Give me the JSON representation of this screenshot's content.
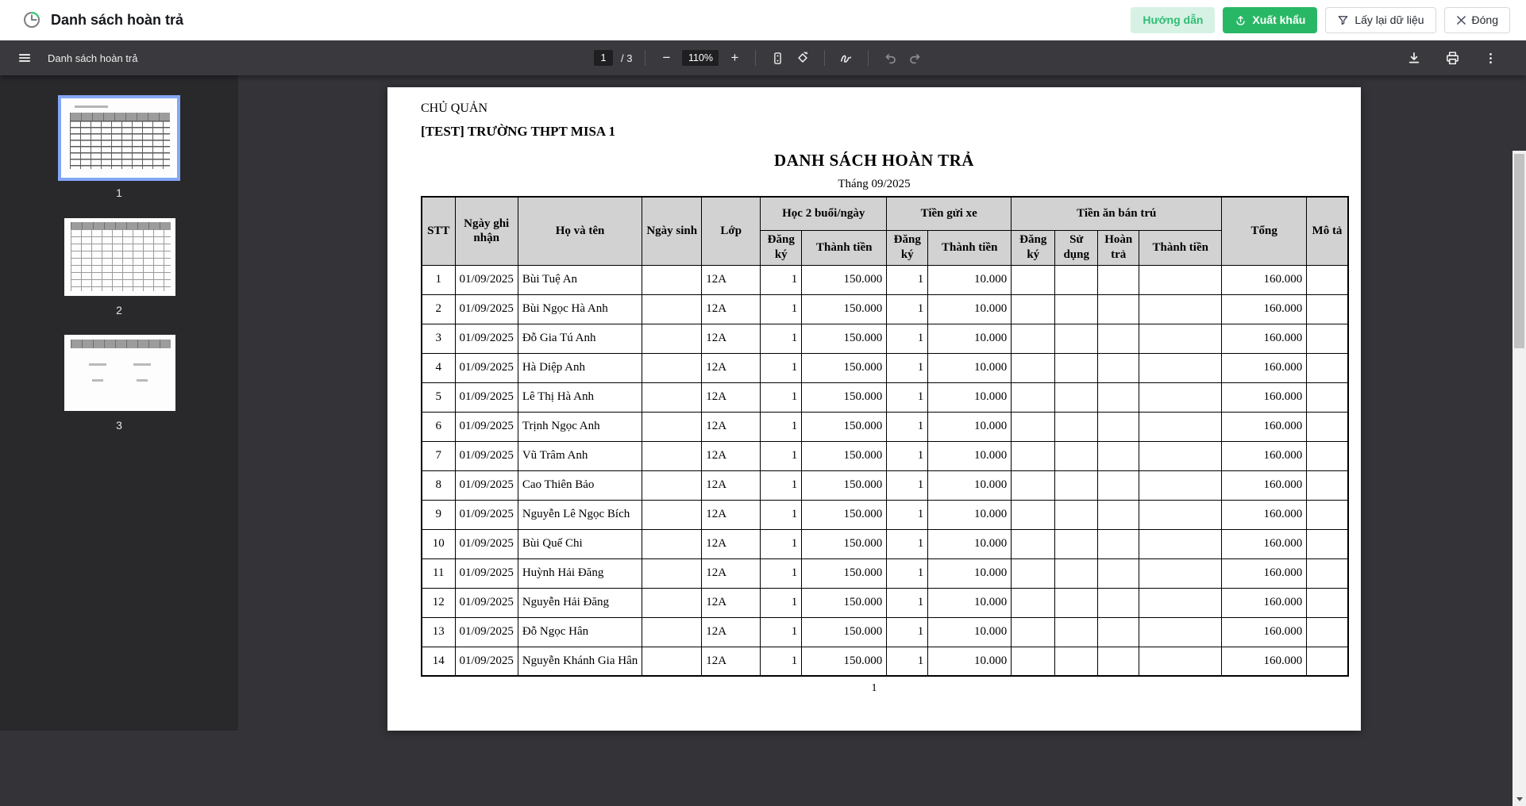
{
  "app_bar": {
    "title": "Danh sách hoàn trả",
    "guide_button": "Hướng dẫn",
    "export_button": "Xuất khẩu",
    "reload_button": "Lấy lại dữ liệu",
    "close_button": "Đóng"
  },
  "pdf_toolbar": {
    "doc_title": "Danh sách hoàn trả",
    "current_page": "1",
    "page_total": "/ 3",
    "zoom_out": "−",
    "zoom_level": "110%",
    "zoom_in": "+"
  },
  "thumbnails": {
    "pages": [
      "1",
      "2",
      "3"
    ],
    "selected_index": 0
  },
  "document": {
    "org_label": "CHỦ QUẢN",
    "org_name": "[TEST] TRƯỜNG THPT MISA 1",
    "title": "DANH SÁCH HOÀN TRẢ",
    "subtitle": "Tháng 09/2025",
    "footer_page_number": "1",
    "table": {
      "header": {
        "stt": "STT",
        "record_date": "Ngày ghi nhận",
        "full_name": "Họ và tên",
        "dob": "Ngày sinh",
        "class": "Lớp",
        "group_two_sessions": "Học 2 buổi/ngày",
        "group_parking": "Tiền gửi xe",
        "group_boarding_meal": "Tiền ăn bán trú",
        "register": "Đăng ký",
        "amount": "Thành tiền",
        "used": "Sử dụng",
        "refund": "Hoàn trả",
        "total": "Tổng",
        "description": "Mô tả"
      },
      "rows": [
        [
          "1",
          "01/09/2025",
          "Bùi Tuệ An",
          "",
          "12A",
          "1",
          "150.000",
          "1",
          "10.000",
          "",
          "",
          "",
          "",
          "160.000",
          ""
        ],
        [
          "2",
          "01/09/2025",
          "Bùi Ngọc Hà Anh",
          "",
          "12A",
          "1",
          "150.000",
          "1",
          "10.000",
          "",
          "",
          "",
          "",
          "160.000",
          ""
        ],
        [
          "3",
          "01/09/2025",
          "Đỗ Gia Tú Anh",
          "",
          "12A",
          "1",
          "150.000",
          "1",
          "10.000",
          "",
          "",
          "",
          "",
          "160.000",
          ""
        ],
        [
          "4",
          "01/09/2025",
          "Hà Diệp Anh",
          "",
          "12A",
          "1",
          "150.000",
          "1",
          "10.000",
          "",
          "",
          "",
          "",
          "160.000",
          ""
        ],
        [
          "5",
          "01/09/2025",
          "Lê Thị Hà Anh",
          "",
          "12A",
          "1",
          "150.000",
          "1",
          "10.000",
          "",
          "",
          "",
          "",
          "160.000",
          ""
        ],
        [
          "6",
          "01/09/2025",
          "Trịnh Ngọc Anh",
          "",
          "12A",
          "1",
          "150.000",
          "1",
          "10.000",
          "",
          "",
          "",
          "",
          "160.000",
          ""
        ],
        [
          "7",
          "01/09/2025",
          "Vũ Trâm Anh",
          "",
          "12A",
          "1",
          "150.000",
          "1",
          "10.000",
          "",
          "",
          "",
          "",
          "160.000",
          ""
        ],
        [
          "8",
          "01/09/2025",
          "Cao Thiên Bảo",
          "",
          "12A",
          "1",
          "150.000",
          "1",
          "10.000",
          "",
          "",
          "",
          "",
          "160.000",
          ""
        ],
        [
          "9",
          "01/09/2025",
          "Nguyễn Lê Ngọc Bích",
          "",
          "12A",
          "1",
          "150.000",
          "1",
          "10.000",
          "",
          "",
          "",
          "",
          "160.000",
          ""
        ],
        [
          "10",
          "01/09/2025",
          "Bùi Quế Chi",
          "",
          "12A",
          "1",
          "150.000",
          "1",
          "10.000",
          "",
          "",
          "",
          "",
          "160.000",
          ""
        ],
        [
          "11",
          "01/09/2025",
          "Huỳnh Hải Đăng",
          "",
          "12A",
          "1",
          "150.000",
          "1",
          "10.000",
          "",
          "",
          "",
          "",
          "160.000",
          ""
        ],
        [
          "12",
          "01/09/2025",
          "Nguyễn Hải Đăng",
          "",
          "12A",
          "1",
          "150.000",
          "1",
          "10.000",
          "",
          "",
          "",
          "",
          "160.000",
          ""
        ],
        [
          "13",
          "01/09/2025",
          "Đỗ Ngọc Hân",
          "",
          "12A",
          "1",
          "150.000",
          "1",
          "10.000",
          "",
          "",
          "",
          "",
          "160.000",
          ""
        ],
        [
          "14",
          "01/09/2025",
          "Nguyễn Khánh Gia Hân",
          "",
          "12A",
          "1",
          "150.000",
          "1",
          "10.000",
          "",
          "",
          "",
          "",
          "160.000",
          ""
        ]
      ]
    }
  },
  "colors": {
    "accent_green": "#28b865",
    "thumb_selected_border": "#84a7f5"
  }
}
